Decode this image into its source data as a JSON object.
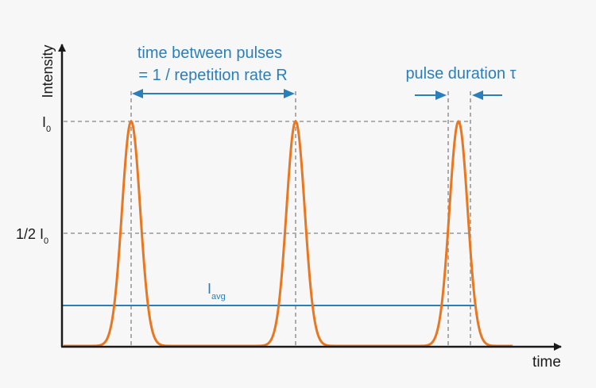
{
  "colors": {
    "background": "#f7f7f7",
    "axis": "#1a1a1a",
    "pulse": "#e87722",
    "annotation": "#2a7fba",
    "guide": "#999999"
  },
  "axes": {
    "y_label": "Intensity",
    "x_label": "time"
  },
  "levels": {
    "peak": {
      "main": "I",
      "sub": "0"
    },
    "half": {
      "prefix": "1/2 ",
      "main": "I",
      "sub": "0"
    },
    "average": {
      "main": "I",
      "sub": "avg"
    }
  },
  "annotations": {
    "period_line1": "time between pulses",
    "period_line2": "= 1 / repetition rate R",
    "duration": "pulse duration τ"
  }
}
